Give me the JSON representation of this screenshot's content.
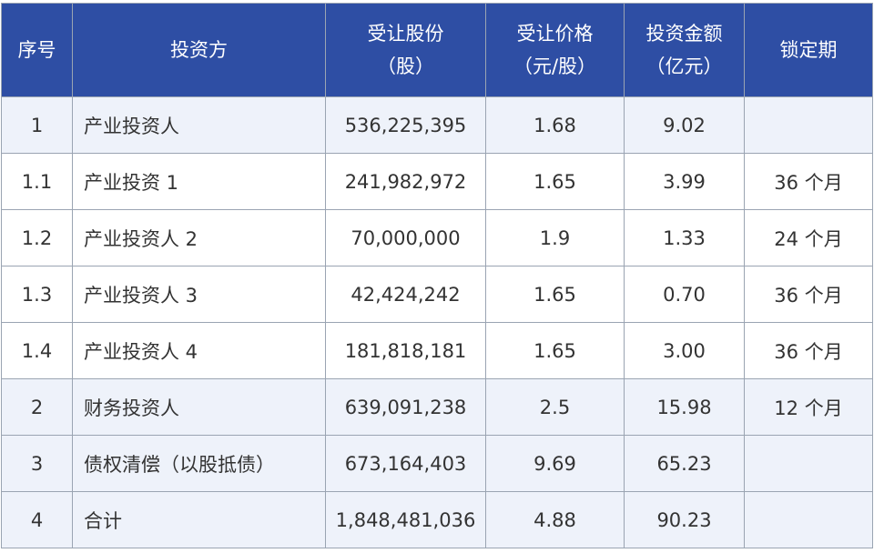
{
  "table": {
    "headers": [
      {
        "line1": "序号",
        "line2": ""
      },
      {
        "line1": "投资方",
        "line2": ""
      },
      {
        "line1": "受让股份",
        "line2": "（股）"
      },
      {
        "line1": "受让价格",
        "line2": "（元/股）"
      },
      {
        "line1": "投资金额",
        "line2": "（亿元）"
      },
      {
        "line1": "锁定期",
        "line2": ""
      }
    ],
    "rows": [
      {
        "no": "1",
        "investor": "产业投资人",
        "shares": "536,225,395",
        "price": "1.68",
        "amount": "9.02",
        "lock": ""
      },
      {
        "no": "1.1",
        "investor": "产业投资 1",
        "shares": "241,982,972",
        "price": "1.65",
        "amount": "3.99",
        "lock": "36 个月"
      },
      {
        "no": "1.2",
        "investor": "产业投资人 2",
        "shares": "70,000,000",
        "price": "1.9",
        "amount": "1.33",
        "lock": "24 个月"
      },
      {
        "no": "1.3",
        "investor": "产业投资人 3",
        "shares": "42,424,242",
        "price": "1.65",
        "amount": "0.70",
        "lock": "36 个月"
      },
      {
        "no": "1.4",
        "investor": "产业投资人 4",
        "shares": "181,818,181",
        "price": "1.65",
        "amount": "3.00",
        "lock": "36 个月"
      },
      {
        "no": "2",
        "investor": "财务投资人",
        "shares": "639,091,238",
        "price": "2.5",
        "amount": "15.98",
        "lock": "12 个月"
      },
      {
        "no": "3",
        "investor": "债权清偿（以股抵债）",
        "shares": "673,164,403",
        "price": "9.69",
        "amount": "65.23",
        "lock": ""
      },
      {
        "no": "4",
        "investor": "合计",
        "shares": "1,848,481,036",
        "price": "4.88",
        "amount": "90.23",
        "lock": ""
      }
    ]
  }
}
